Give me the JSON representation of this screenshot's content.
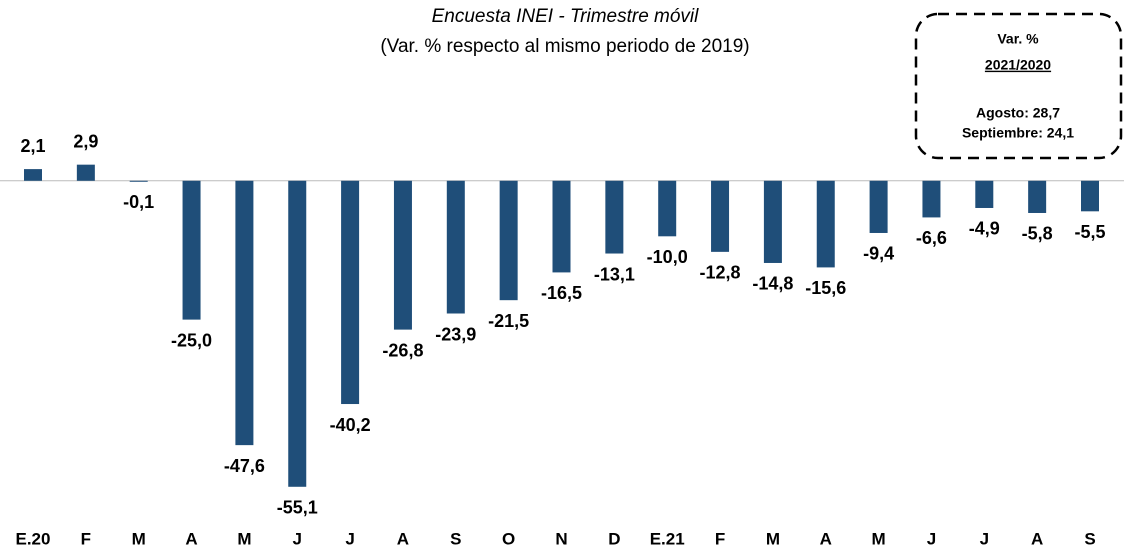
{
  "chart_data": {
    "type": "bar",
    "title": "Encuesta INEI - Trimestre móvil",
    "subtitle": "(Var. % respecto al mismo periodo de 2019)",
    "categories": [
      "E.20",
      "F",
      "M",
      "A",
      "M",
      "J",
      "J",
      "A",
      "S",
      "O",
      "N",
      "D",
      "E.21",
      "F",
      "M",
      "A",
      "M",
      "J",
      "J",
      "A",
      "S"
    ],
    "values": [
      2.1,
      2.9,
      -0.1,
      -25.0,
      -47.6,
      -55.1,
      -40.2,
      -26.8,
      -23.9,
      -21.5,
      -16.5,
      -13.1,
      -10.0,
      -12.8,
      -14.8,
      -15.6,
      -9.4,
      -6.6,
      -4.9,
      -5.8,
      -5.5
    ],
    "value_labels": [
      "2,1",
      "2,9",
      "-0,1",
      "-25,0",
      "-47,6",
      "-55,1",
      "-40,2",
      "-26,8",
      "-23,9",
      "-21,5",
      "-16,5",
      "-13,1",
      "-10,0",
      "-12,8",
      "-14,8",
      "-15,6",
      "-9,4",
      "-6,6",
      "-4,9",
      "-5,8",
      "-5,5"
    ],
    "color": "#1f4e79",
    "ylim": [
      -60,
      5
    ],
    "annotation": {
      "title": "Var. %",
      "period": "2021/2020",
      "lines": [
        "Agosto: 28,7",
        "Septiembre: 24,1"
      ]
    }
  }
}
